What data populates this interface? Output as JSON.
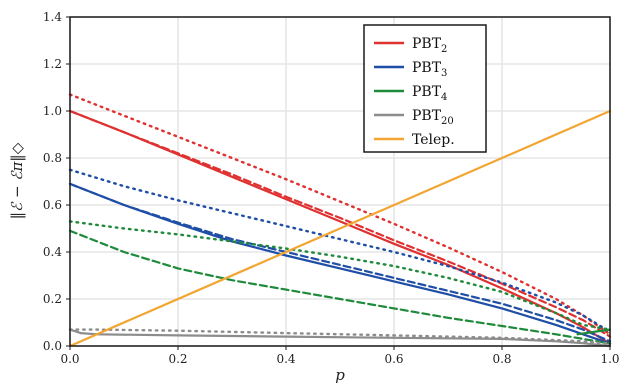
{
  "chart_data": {
    "type": "line",
    "title": "",
    "xlabel": "p",
    "ylabel": "‖ℰ − ℰπ‖◇",
    "xlim": [
      0,
      1
    ],
    "ylim": [
      0,
      1.4
    ],
    "xticks": [
      "0.0",
      "0.2",
      "0.4",
      "0.6",
      "0.8",
      "1.0"
    ],
    "yticks": [
      "0.0",
      "0.2",
      "0.4",
      "0.6",
      "0.8",
      "1.0",
      "1.2",
      "1.4"
    ],
    "grid": true,
    "legend_position": "top-right",
    "legend": [
      {
        "label": "PBT",
        "sub": "2",
        "color": "#e03131"
      },
      {
        "label": "PBT",
        "sub": "3",
        "color": "#1f4ea6"
      },
      {
        "label": "PBT",
        "sub": "4",
        "color": "#1e8a3a"
      },
      {
        "label": "PBT",
        "sub": "20",
        "color": "#8c8c8c"
      },
      {
        "label": "Telep.",
        "sub": "",
        "color": "#f2a531"
      }
    ],
    "series": [
      {
        "group": "PBT2",
        "style": "solid",
        "color": "#e03131",
        "x": [
          0,
          0.1,
          0.2,
          0.3,
          0.4,
          0.5,
          0.6,
          0.7,
          0.8,
          0.9,
          0.95,
          1.0
        ],
        "y": [
          1.0,
          0.91,
          0.815,
          0.72,
          0.625,
          0.53,
          0.435,
          0.345,
          0.245,
          0.14,
          0.08,
          0.01
        ]
      },
      {
        "group": "PBT2",
        "style": "dashed",
        "color": "#e03131",
        "x": [
          0,
          0.1,
          0.2,
          0.3,
          0.4,
          0.5,
          0.6,
          0.7,
          0.8,
          0.9,
          0.95,
          1.0
        ],
        "y": [
          1.0,
          0.91,
          0.82,
          0.73,
          0.635,
          0.545,
          0.45,
          0.36,
          0.265,
          0.165,
          0.11,
          0.04
        ]
      },
      {
        "group": "PBT2",
        "style": "dotted",
        "color": "#e03131",
        "x": [
          0,
          0.1,
          0.2,
          0.3,
          0.4,
          0.5,
          0.6,
          0.7,
          0.8,
          0.9,
          0.95,
          1.0
        ],
        "y": [
          1.07,
          0.98,
          0.89,
          0.8,
          0.71,
          0.615,
          0.52,
          0.42,
          0.315,
          0.2,
          0.13,
          0.05
        ]
      },
      {
        "group": "PBT3",
        "style": "solid",
        "color": "#1f4ea6",
        "x": [
          0,
          0.1,
          0.2,
          0.3,
          0.4,
          0.5,
          0.6,
          0.7,
          0.8,
          0.9,
          0.95,
          1.0
        ],
        "y": [
          0.69,
          0.6,
          0.52,
          0.445,
          0.385,
          0.33,
          0.275,
          0.22,
          0.16,
          0.09,
          0.05,
          0.01
        ]
      },
      {
        "group": "PBT3",
        "style": "dashed",
        "color": "#1f4ea6",
        "x": [
          0,
          0.1,
          0.2,
          0.3,
          0.4,
          0.5,
          0.6,
          0.7,
          0.8,
          0.9,
          0.95,
          1.0
        ],
        "y": [
          0.69,
          0.6,
          0.525,
          0.455,
          0.4,
          0.345,
          0.29,
          0.235,
          0.18,
          0.11,
          0.07,
          0.02
        ]
      },
      {
        "group": "PBT3",
        "style": "dotted",
        "color": "#1f4ea6",
        "x": [
          0,
          0.1,
          0.2,
          0.3,
          0.4,
          0.5,
          0.6,
          0.7,
          0.8,
          0.9,
          0.95,
          1.0
        ],
        "y": [
          0.75,
          0.68,
          0.62,
          0.565,
          0.51,
          0.455,
          0.4,
          0.34,
          0.27,
          0.185,
          0.13,
          0.06
        ]
      },
      {
        "group": "PBT4",
        "style": "solid",
        "color": "#1e8a3a",
        "x": [
          0.94,
          0.97,
          1.0
        ],
        "y": [
          0.05,
          0.06,
          0.07
        ]
      },
      {
        "group": "PBT4",
        "style": "dashed",
        "color": "#1e8a3a",
        "x": [
          0,
          0.1,
          0.2,
          0.3,
          0.4,
          0.5,
          0.6,
          0.7,
          0.8,
          0.9,
          0.95,
          1.0
        ],
        "y": [
          0.49,
          0.4,
          0.33,
          0.28,
          0.24,
          0.2,
          0.16,
          0.12,
          0.085,
          0.05,
          0.03,
          0.01
        ]
      },
      {
        "group": "PBT4",
        "style": "dotted",
        "color": "#1e8a3a",
        "x": [
          0,
          0.1,
          0.2,
          0.3,
          0.4,
          0.5,
          0.6,
          0.7,
          0.8,
          0.9,
          0.95,
          1.0
        ],
        "y": [
          0.53,
          0.5,
          0.475,
          0.445,
          0.415,
          0.38,
          0.34,
          0.29,
          0.23,
          0.14,
          0.09,
          0.07
        ]
      },
      {
        "group": "PBT20",
        "style": "solid",
        "color": "#8c8c8c",
        "x": [
          0,
          0.02,
          0.05,
          0.2,
          0.4,
          0.6,
          0.8,
          0.9,
          0.95,
          1.0
        ],
        "y": [
          0.07,
          0.055,
          0.05,
          0.045,
          0.04,
          0.035,
          0.03,
          0.02,
          0.012,
          0.0
        ]
      },
      {
        "group": "PBT20",
        "style": "dotted",
        "color": "#8c8c8c",
        "x": [
          0,
          0.05,
          0.2,
          0.4,
          0.6,
          0.8,
          0.9,
          0.95,
          1.0
        ],
        "y": [
          0.07,
          0.07,
          0.065,
          0.055,
          0.045,
          0.035,
          0.025,
          0.02,
          0.01
        ]
      },
      {
        "group": "Telep.",
        "style": "solid",
        "color": "#f2a531",
        "x": [
          0,
          1
        ],
        "y": [
          0,
          1.0
        ]
      }
    ]
  }
}
